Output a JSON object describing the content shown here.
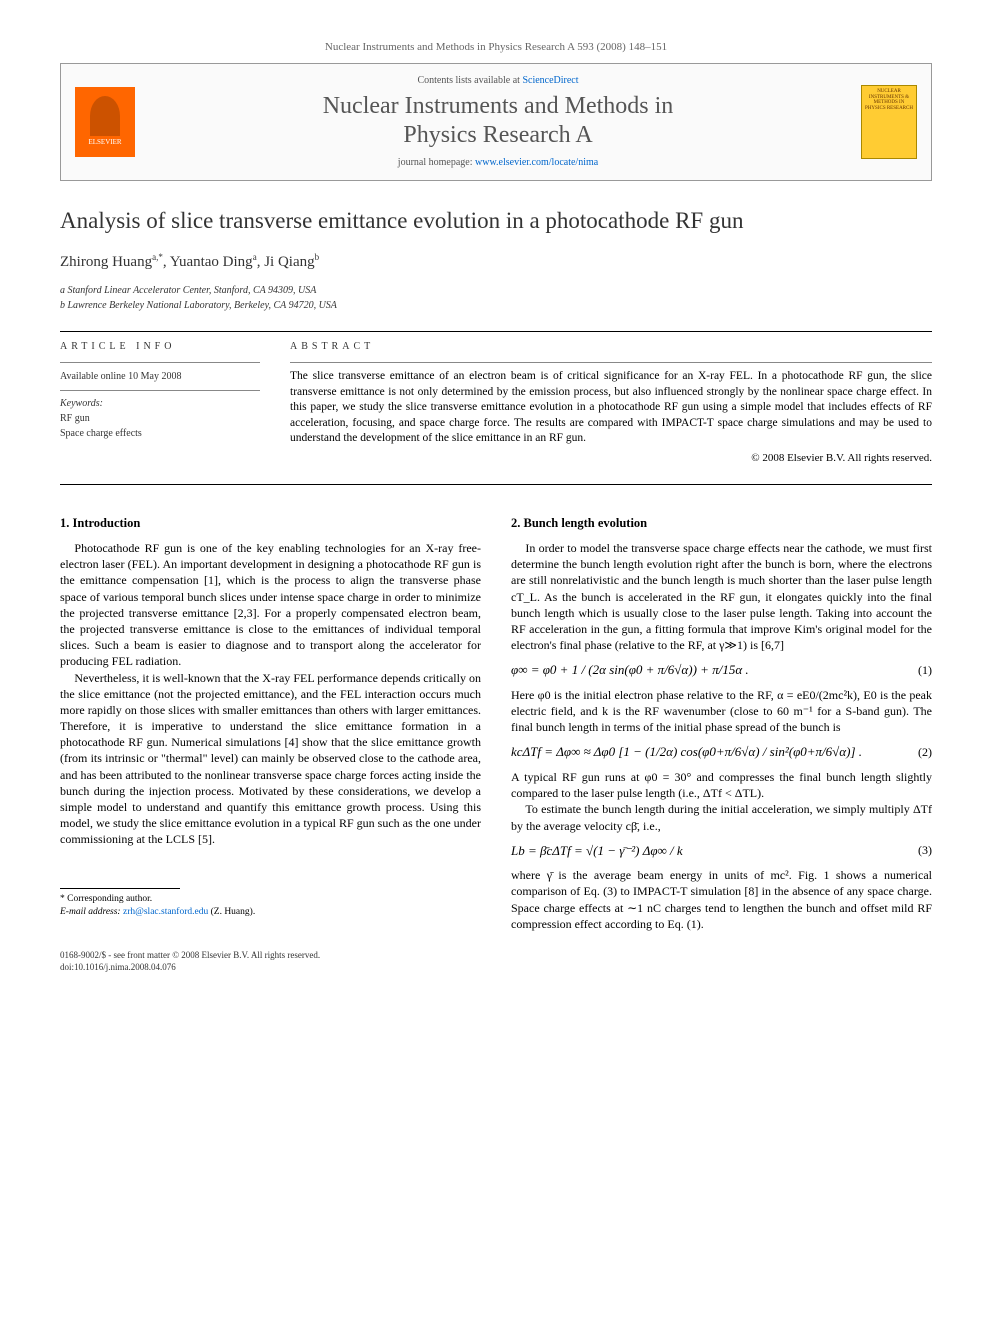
{
  "journal_ref": "Nuclear Instruments and Methods in Physics Research A 593 (2008) 148–151",
  "header": {
    "elsevier_label": "ELSEVIER",
    "contents_prefix": "Contents lists available at ",
    "contents_link": "ScienceDirect",
    "journal_title_line1": "Nuclear Instruments and Methods in",
    "journal_title_line2": "Physics Research A",
    "homepage_prefix": "journal homepage: ",
    "homepage_link": "www.elsevier.com/locate/nima",
    "cover_text": "NUCLEAR INSTRUMENTS & METHODS IN PHYSICS RESEARCH"
  },
  "title": "Analysis of slice transverse emittance evolution in a photocathode RF gun",
  "authors_html": "Zhirong Huang",
  "author1_sup": "a,*",
  "author2": ", Yuantao Ding",
  "author2_sup": "a",
  "author3": ", Ji Qiang",
  "author3_sup": "b",
  "affil_a": "a Stanford Linear Accelerator Center, Stanford, CA 94309, USA",
  "affil_b": "b Lawrence Berkeley National Laboratory, Berkeley, CA 94720, USA",
  "info_head": "ARTICLE INFO",
  "abs_head": "ABSTRACT",
  "available": "Available online 10 May 2008",
  "kw_head": "Keywords:",
  "kw1": "RF gun",
  "kw2": "Space charge effects",
  "abstract": "The slice transverse emittance of an electron beam is of critical significance for an X-ray FEL. In a photocathode RF gun, the slice transverse emittance is not only determined by the emission process, but also influenced strongly by the nonlinear space charge effect. In this paper, we study the slice transverse emittance evolution in a photocathode RF gun using a simple model that includes effects of RF acceleration, focusing, and space charge force. The results are compared with IMPACT-T space charge simulations and may be used to understand the development of the slice emittance in an RF gun.",
  "copyright": "© 2008 Elsevier B.V. All rights reserved.",
  "sec1_head": "1. Introduction",
  "sec1_p1": "Photocathode RF gun is one of the key enabling technologies for an X-ray free-electron laser (FEL). An important development in designing a photocathode RF gun is the emittance compensation [1], which is the process to align the transverse phase space of various temporal bunch slices under intense space charge in order to minimize the projected transverse emittance [2,3]. For a properly compensated electron beam, the projected transverse emittance is close to the emittances of individual temporal slices. Such a beam is easier to diagnose and to transport along the accelerator for producing FEL radiation.",
  "sec1_p2": "Nevertheless, it is well-known that the X-ray FEL performance depends critically on the slice emittance (not the projected emittance), and the FEL interaction occurs much more rapidly on those slices with smaller emittances than others with larger emittances. Therefore, it is imperative to understand the slice emittance formation in a photocathode RF gun. Numerical simulations [4] show that the slice emittance growth (from its intrinsic or \"thermal\" level) can mainly be observed close to the cathode area, and has been attributed to the nonlinear transverse space charge forces acting inside the bunch during the injection process. Motivated by these considerations, we develop a simple model to understand and quantify this emittance growth process. Using this model, we study the slice emittance evolution in a typical RF gun such as the one under commissioning at the LCLS [5].",
  "sec2_head": "2. Bunch length evolution",
  "sec2_p1": "In order to model the transverse space charge effects near the cathode, we must first determine the bunch length evolution right after the bunch is born, where the electrons are still nonrelativistic and the bunch length is much shorter than the laser pulse length cT_L. As the bunch is accelerated in the RF gun, it elongates quickly into the final bunch length which is usually close to the laser pulse length. Taking into account the RF acceleration in the gun, a fitting formula that improve Kim's original model for the electron's final phase (relative to the RF, at γ≫1) is [6,7]",
  "eq1": "φ∞ = φ0 + 1 / (2α sin(φ0 + π/6√α)) + π/15α .",
  "eq1_num": "(1)",
  "sec2_p2a": "Here φ0 is the initial electron phase relative to the RF, α = eE0/(2mc²k), E0 is the peak electric field, and k is the RF wavenumber (close to 60 m⁻¹ for a S-band gun). The final bunch length in terms of the initial phase spread of the bunch is",
  "eq2": "kcΔTf = Δφ∞ ≈ Δφ0 [1 − (1/2α) cos(φ0+π/6√α) / sin²(φ0+π/6√α)] .",
  "eq2_num": "(2)",
  "sec2_p2b": "A typical RF gun runs at φ0 = 30° and compresses the final bunch length slightly compared to the laser pulse length (i.e., ΔTf < ΔTL).",
  "sec2_p3": "To estimate the bunch length during the initial acceleration, we simply multiply ΔTf by the average velocity cβ̄, i.e.,",
  "eq3": "Lb = β̄cΔTf = √(1 − γ̄⁻²) Δφ∞ / k",
  "eq3_num": "(3)",
  "sec2_p4": "where γ̄ is the average beam energy in units of mc². Fig. 1 shows a numerical comparison of Eq. (3) to IMPACT-T simulation [8] in the absence of any space charge. Space charge effects at ∼1 nC charges tend to lengthen the bunch and offset mild RF compression effect according to Eq. (1).",
  "corr_label": "* Corresponding author.",
  "corr_email_label": "E-mail address: ",
  "corr_email": "zrh@slac.stanford.edu",
  "corr_name": " (Z. Huang).",
  "footer_line1": "0168-9002/$ - see front matter © 2008 Elsevier B.V. All rights reserved.",
  "footer_line2": "doi:10.1016/j.nima.2008.04.076",
  "colors": {
    "link": "#0066cc",
    "elsevier_orange": "#ff6600",
    "cover_yellow": "#ffcc33",
    "text": "#000000",
    "muted": "#555555"
  }
}
